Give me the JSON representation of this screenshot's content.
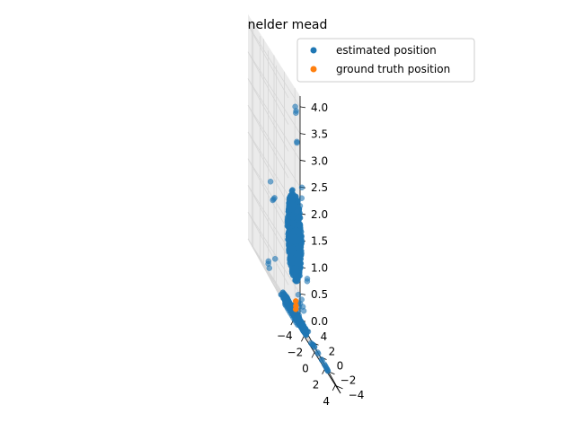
{
  "chart_data": {
    "type": "scatter",
    "title": "nelder mead",
    "xlabel": "",
    "ylabel": "",
    "zlabel": "",
    "projection": "3d",
    "xlim": [
      -5,
      5
    ],
    "ylim": [
      -5,
      5
    ],
    "zlim": [
      0,
      4.2
    ],
    "xticks": [
      -4,
      -2,
      0,
      2,
      4
    ],
    "yticks": [
      -4,
      -2,
      0,
      2,
      4
    ],
    "zticks": [
      0.0,
      0.5,
      1.0,
      1.5,
      2.0,
      2.5,
      3.0,
      3.5,
      4.0
    ],
    "x_tick_labels": [
      "−4",
      "−2",
      "0",
      "2",
      "4"
    ],
    "y_tick_labels": [
      "−4",
      "−2",
      "0",
      "2",
      "4"
    ],
    "z_tick_labels": [
      "0.0",
      "0.5",
      "1.0",
      "1.5",
      "2.0",
      "2.5",
      "3.0",
      "3.5",
      "4.0"
    ],
    "grid": true,
    "legend_position": "upper right",
    "series": [
      {
        "name": "estimated position",
        "color": "#1f77b4",
        "clusters": [
          {
            "shape": "ellipsoid",
            "center": [
              0.3,
              0.3,
              1.5
            ],
            "radius": [
              1.1,
              1.1,
              0.85
            ],
            "count": 900
          },
          {
            "shape": "ring",
            "center": [
              0.3,
              0.3,
              0.0
            ],
            "inner_radius": 0.3,
            "outer_radius": 1.8,
            "count": 650
          }
        ],
        "points": [
          [
            2.2,
            2.6,
            3.9
          ],
          [
            2.3,
            2.5,
            3.85
          ],
          [
            2.4,
            2.7,
            3.8
          ],
          [
            2.2,
            2.2,
            3.3
          ],
          [
            2.3,
            2.3,
            3.28
          ],
          [
            2.7,
            1.6,
            2.6
          ],
          [
            2.6,
            1.5,
            2.4
          ],
          [
            2.6,
            1.9,
            2.2
          ],
          [
            2.4,
            2.4,
            2.0
          ],
          [
            -3.7,
            1.1,
            1.8
          ],
          [
            -2.4,
            2.0,
            1.55
          ],
          [
            -2.5,
            2.1,
            1.5
          ],
          [
            -2.3,
            1.9,
            1.6
          ],
          [
            -4.2,
            1.0,
            0.2
          ],
          [
            -4.1,
            1.1,
            0.25
          ],
          [
            -4.0,
            1.0,
            0.15
          ],
          [
            -3.2,
            0.6,
            0.5
          ],
          [
            -4.0,
            -2.9,
            0.0
          ],
          [
            -3.9,
            -3.0,
            0.0
          ],
          [
            -3.7,
            -3.1,
            0.0
          ],
          [
            -3.5,
            -3.2,
            0.0
          ],
          [
            -3.3,
            -3.3,
            0.0
          ],
          [
            -3.1,
            -3.4,
            0.0
          ],
          [
            -2.9,
            -3.5,
            0.0
          ],
          [
            -2.7,
            -3.6,
            0.0
          ],
          [
            -2.5,
            -3.7,
            0.0
          ],
          [
            -2.3,
            -3.8,
            0.0
          ],
          [
            -2.6,
            -1.1,
            0.0
          ],
          [
            -2.5,
            -1.0,
            0.0
          ],
          [
            -2.4,
            -1.2,
            0.0
          ],
          [
            -2.2,
            -1.4,
            0.0
          ],
          [
            -1.9,
            0.8,
            0.0
          ],
          [
            -1.8,
            0.9,
            0.0
          ],
          [
            -1.7,
            -0.1,
            0.0
          ],
          [
            4.0,
            0.5,
            0.0
          ],
          [
            3.9,
            0.4,
            0.0
          ],
          [
            4.3,
            0.9,
            0.0
          ],
          [
            4.6,
            0.9,
            0.0
          ],
          [
            4.8,
            1.2,
            0.0
          ],
          [
            2.6,
            -0.8,
            0.0
          ],
          [
            3.1,
            -0.4,
            0.0
          ],
          [
            3.2,
            3.7,
            0.75
          ],
          [
            3.3,
            3.6,
            0.72
          ],
          [
            3.4,
            3.8,
            0.74
          ],
          [
            3.5,
            3.5,
            0.3
          ],
          [
            3.6,
            3.4,
            0.25
          ],
          [
            3.7,
            3.3,
            0.35
          ],
          [
            3.3,
            3.3,
            0.15
          ],
          [
            3.4,
            3.2,
            0.1
          ],
          [
            3.8,
            3.9,
            0.45
          ],
          [
            3.8,
            1.7,
            1.0
          ],
          [
            3.9,
            1.8,
            1.05
          ],
          [
            4.2,
            2.2,
            0.05
          ],
          [
            4.3,
            2.1,
            0.08
          ],
          [
            2.9,
            1.6,
            0.4
          ],
          [
            3.0,
            1.5,
            0.35
          ],
          [
            2.5,
            1.4,
            0.5
          ],
          [
            4.6,
            -2.4,
            0.0
          ],
          [
            4.7,
            -2.2,
            0.0
          ],
          [
            4.8,
            -2.0,
            0.0
          ],
          [
            4.9,
            -1.8,
            0.0
          ],
          [
            5.0,
            -1.6,
            0.0
          ],
          [
            5.0,
            -1.4,
            0.0
          ],
          [
            5.0,
            -1.2,
            0.0
          ],
          [
            5.0,
            -1.0,
            0.0
          ],
          [
            4.9,
            -0.6,
            0.0
          ],
          [
            4.7,
            -0.7,
            0.0
          ],
          [
            4.6,
            0.0,
            0.0
          ],
          [
            4.8,
            0.4,
            0.0
          ]
        ]
      },
      {
        "name": "ground truth position",
        "color": "#ff7f0e",
        "points": [
          [
            1.3,
            1.3,
            0.3
          ],
          [
            1.3,
            1.25,
            0.22
          ],
          [
            1.3,
            1.3,
            0.15
          ]
        ]
      }
    ]
  }
}
